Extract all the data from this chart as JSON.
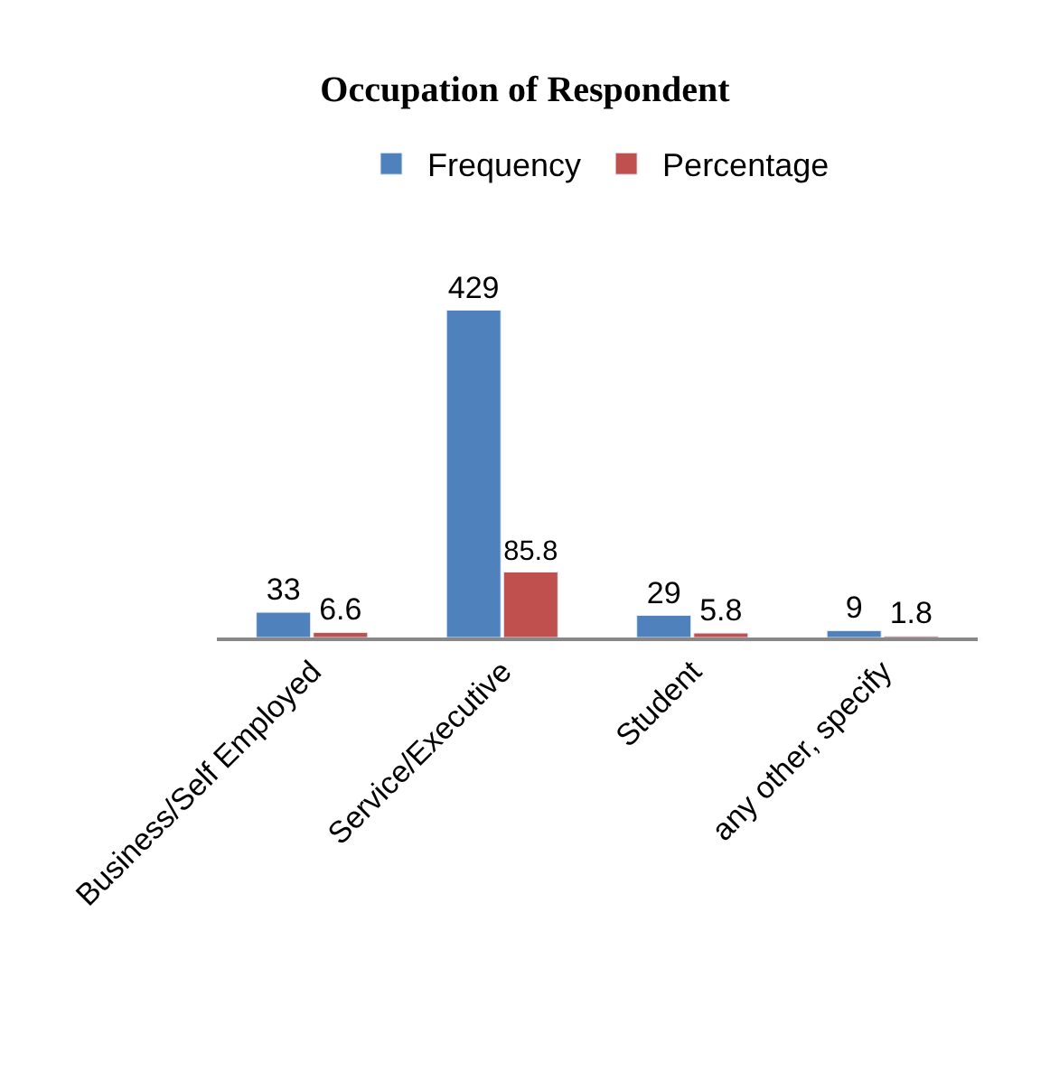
{
  "chart_data": {
    "type": "bar",
    "title": "Occupation of Respondent",
    "categories": [
      "Business/Self Employed",
      "Service/Executive",
      "Student",
      "any other, specify"
    ],
    "series": [
      {
        "name": "Frequency",
        "color": "#4f81bd",
        "values": [
          33,
          429,
          29,
          9
        ]
      },
      {
        "name": "Percentage",
        "color": "#c0504d",
        "values": [
          6.6,
          85.8,
          5.8,
          1.8
        ]
      }
    ],
    "data_labels": true,
    "legend": "top",
    "tick_labels": "x"
  }
}
